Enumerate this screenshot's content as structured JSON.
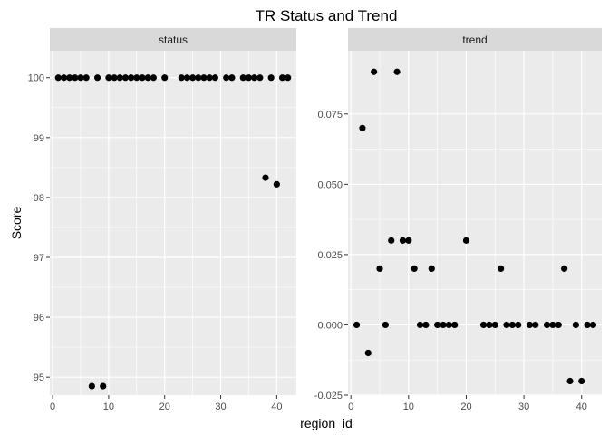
{
  "chart_data": {
    "type": "scatter",
    "title": "TR Status and Trend",
    "xlabel": "region_id",
    "ylabel": "Score",
    "facet_strip_color": "#d9d9d9",
    "panel_color": "#ebebeb",
    "point_color": "#000000",
    "facets": [
      {
        "name": "status",
        "xlim": [
          -0.5,
          43.5
        ],
        "ylim": [
          94.7,
          100.45
        ],
        "xticks": [
          0,
          10,
          20,
          30,
          40
        ],
        "xtick_labels": [
          "0",
          "10",
          "20",
          "30",
          "40"
        ],
        "yticks": [
          95,
          96,
          97,
          98,
          99,
          100
        ],
        "ytick_labels": [
          "95",
          "96",
          "97",
          "98",
          "99",
          "100"
        ],
        "points": [
          {
            "x": 1,
            "y": 100
          },
          {
            "x": 2,
            "y": 100
          },
          {
            "x": 3,
            "y": 100
          },
          {
            "x": 4,
            "y": 100
          },
          {
            "x": 5,
            "y": 100
          },
          {
            "x": 6,
            "y": 100
          },
          {
            "x": 7,
            "y": 94.85
          },
          {
            "x": 8,
            "y": 100
          },
          {
            "x": 9,
            "y": 94.85
          },
          {
            "x": 10,
            "y": 100
          },
          {
            "x": 11,
            "y": 100
          },
          {
            "x": 12,
            "y": 100
          },
          {
            "x": 13,
            "y": 100
          },
          {
            "x": 14,
            "y": 100
          },
          {
            "x": 15,
            "y": 100
          },
          {
            "x": 16,
            "y": 100
          },
          {
            "x": 17,
            "y": 100
          },
          {
            "x": 18,
            "y": 100
          },
          {
            "x": 20,
            "y": 100
          },
          {
            "x": 23,
            "y": 100
          },
          {
            "x": 24,
            "y": 100
          },
          {
            "x": 25,
            "y": 100
          },
          {
            "x": 26,
            "y": 100
          },
          {
            "x": 27,
            "y": 100
          },
          {
            "x": 28,
            "y": 100
          },
          {
            "x": 29,
            "y": 100
          },
          {
            "x": 31,
            "y": 100
          },
          {
            "x": 32,
            "y": 100
          },
          {
            "x": 34,
            "y": 100
          },
          {
            "x": 35,
            "y": 100
          },
          {
            "x": 36,
            "y": 100
          },
          {
            "x": 37,
            "y": 100
          },
          {
            "x": 38,
            "y": 98.33
          },
          {
            "x": 39,
            "y": 100
          },
          {
            "x": 40,
            "y": 98.22
          },
          {
            "x": 41,
            "y": 100
          },
          {
            "x": 42,
            "y": 100
          }
        ]
      },
      {
        "name": "trend",
        "xlim": [
          -0.5,
          43.5
        ],
        "ylim": [
          -0.025,
          0.0975
        ],
        "xticks": [
          0,
          10,
          20,
          30,
          40
        ],
        "xtick_labels": [
          "0",
          "10",
          "20",
          "30",
          "40"
        ],
        "yticks": [
          -0.025,
          0,
          0.025,
          0.05,
          0.075
        ],
        "ytick_labels": [
          "-0.025",
          "0.000",
          "0.025",
          "0.050",
          "0.075"
        ],
        "points": [
          {
            "x": 1,
            "y": 0
          },
          {
            "x": 2,
            "y": 0.07
          },
          {
            "x": 3,
            "y": -0.01
          },
          {
            "x": 4,
            "y": 0.09
          },
          {
            "x": 5,
            "y": 0.02
          },
          {
            "x": 6,
            "y": 0
          },
          {
            "x": 7,
            "y": 0.03
          },
          {
            "x": 8,
            "y": 0.09
          },
          {
            "x": 9,
            "y": 0.03
          },
          {
            "x": 10,
            "y": 0.03
          },
          {
            "x": 11,
            "y": 0.02
          },
          {
            "x": 12,
            "y": 0
          },
          {
            "x": 13,
            "y": 0
          },
          {
            "x": 14,
            "y": 0.02
          },
          {
            "x": 15,
            "y": 0
          },
          {
            "x": 16,
            "y": 0
          },
          {
            "x": 17,
            "y": 0
          },
          {
            "x": 18,
            "y": 0
          },
          {
            "x": 20,
            "y": 0.03
          },
          {
            "x": 23,
            "y": 0
          },
          {
            "x": 24,
            "y": 0
          },
          {
            "x": 25,
            "y": 0
          },
          {
            "x": 26,
            "y": 0.02
          },
          {
            "x": 27,
            "y": 0
          },
          {
            "x": 28,
            "y": 0
          },
          {
            "x": 29,
            "y": 0
          },
          {
            "x": 31,
            "y": 0
          },
          {
            "x": 32,
            "y": 0
          },
          {
            "x": 34,
            "y": 0
          },
          {
            "x": 35,
            "y": 0
          },
          {
            "x": 36,
            "y": 0
          },
          {
            "x": 37,
            "y": 0.02
          },
          {
            "x": 38,
            "y": -0.02
          },
          {
            "x": 39,
            "y": 0
          },
          {
            "x": 40,
            "y": -0.02
          },
          {
            "x": 41,
            "y": 0
          },
          {
            "x": 42,
            "y": 0
          }
        ]
      }
    ]
  }
}
